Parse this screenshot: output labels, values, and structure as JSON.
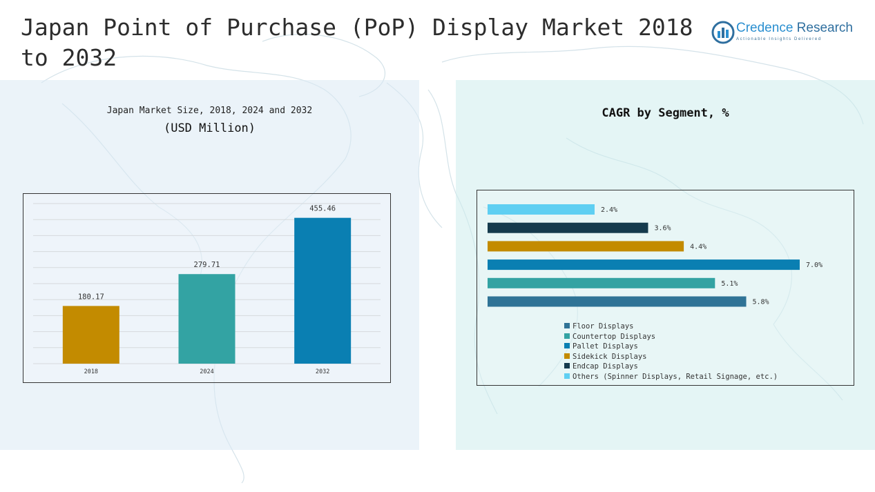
{
  "header": {
    "title": "Japan Point of Purchase (PoP) Display Market 2018 to 2032"
  },
  "logo": {
    "name_part1": "Credence",
    "name_part2": "Research",
    "tagline": "Actionable Insights Delivered",
    "icon": "bar-chart-circle-icon"
  },
  "colors": {
    "gold": "#c38b00",
    "teal": "#33a3a3",
    "blue": "#0a7fb2",
    "steel": "#2f7396",
    "navy": "#153a4d",
    "sky": "#5fcff2"
  },
  "chart_data": [
    {
      "type": "bar",
      "title": "Japan Market Size, 2018, 2024 and 2032",
      "subtitle": "(USD Million)",
      "categories": [
        "2018",
        "2024",
        "2032"
      ],
      "values": [
        180.17,
        279.71,
        455.46
      ],
      "value_labels": [
        "180.17",
        "279.71",
        "455.46"
      ],
      "bar_colors": [
        "#c38b00",
        "#33a3a3",
        "#0a7fb2"
      ],
      "ylim": [
        0,
        500
      ],
      "grid": true
    },
    {
      "type": "bar",
      "orientation": "horizontal",
      "title": "CAGR by Segment, %",
      "categories": [
        "Others (Spinner Displays, Retail Signage, etc.)",
        "Endcap Displays",
        "Sidekick Displays",
        "Pallet Displays",
        "Countertop Displays",
        "Floor Displays"
      ],
      "values": [
        2.4,
        3.6,
        4.4,
        7.0,
        5.1,
        5.8
      ],
      "value_labels": [
        "2.4%",
        "3.6%",
        "4.4%",
        "7.0%",
        "5.1%",
        "5.8%"
      ],
      "bar_colors": [
        "#5fcff2",
        "#153a4d",
        "#c38b00",
        "#0a7fb2",
        "#33a3a3",
        "#2f7396"
      ],
      "xlim": [
        0,
        7.0
      ],
      "legend": {
        "placement": "bottom",
        "items": [
          {
            "label": "Floor Displays",
            "color": "#2f7396"
          },
          {
            "label": "Countertop Displays",
            "color": "#33a3a3"
          },
          {
            "label": "Pallet Displays",
            "color": "#0a7fb2"
          },
          {
            "label": "Sidekick Displays",
            "color": "#c38b00"
          },
          {
            "label": "Endcap Displays",
            "color": "#153a4d"
          },
          {
            "label": "Others (Spinner Displays, Retail Signage, etc.)",
            "color": "#5fcff2"
          }
        ]
      }
    }
  ]
}
